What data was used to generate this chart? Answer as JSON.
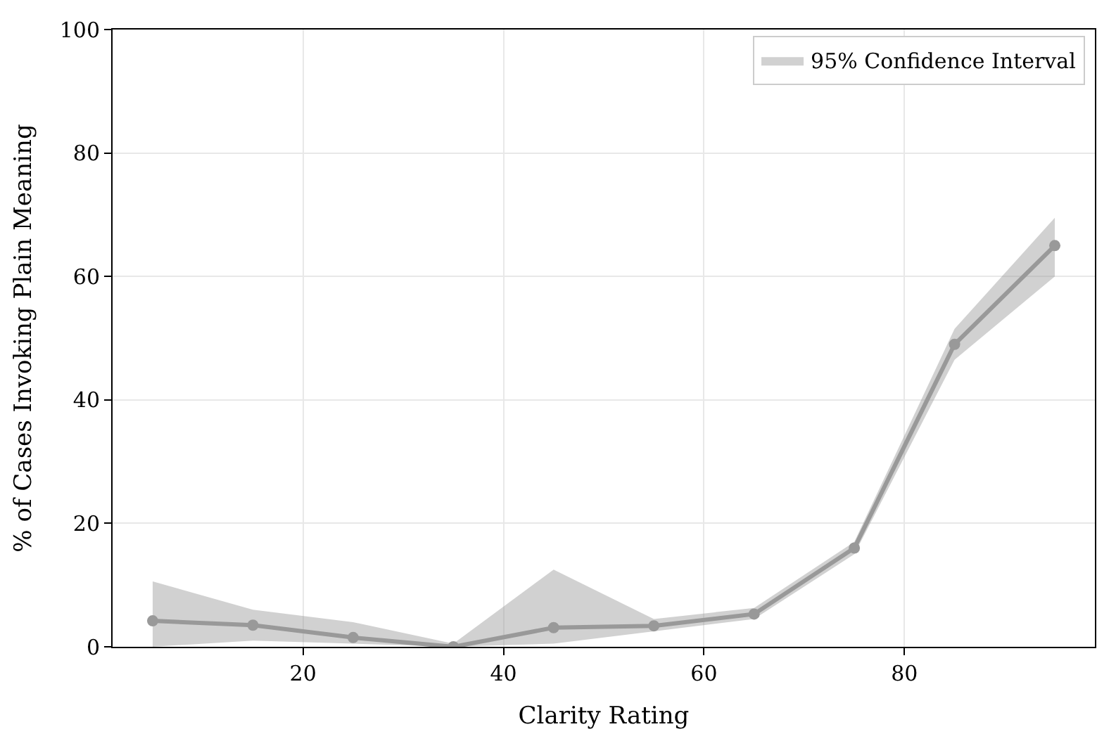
{
  "chart_data": {
    "type": "line",
    "xlabel": "Clarity Rating",
    "ylabel": "% of Cases Invoking Plain Meaning",
    "x": [
      5,
      15,
      25,
      35,
      45,
      55,
      65,
      75,
      85,
      95
    ],
    "series": [
      {
        "name": "95% Confidence Interval",
        "color": "#999999",
        "values": [
          4.2,
          3.5,
          1.5,
          0,
          3.1,
          3.4,
          5.3,
          16,
          49,
          65
        ],
        "lower": [
          0,
          1,
          0.5,
          0,
          0.5,
          2.5,
          4.5,
          15,
          46.5,
          60
        ],
        "upper": [
          10.6,
          6,
          4,
          0.5,
          12.5,
          4.5,
          6.3,
          17,
          51.5,
          69.5
        ]
      }
    ],
    "xlim": [
      1,
      99
    ],
    "xticks": [
      20,
      40,
      60,
      80
    ],
    "ylim": [
      0,
      100
    ],
    "yticks": [
      0,
      20,
      40,
      60,
      80,
      100
    ],
    "grid": true,
    "legend": "top right",
    "marker": "circle",
    "line_style": "solid"
  }
}
